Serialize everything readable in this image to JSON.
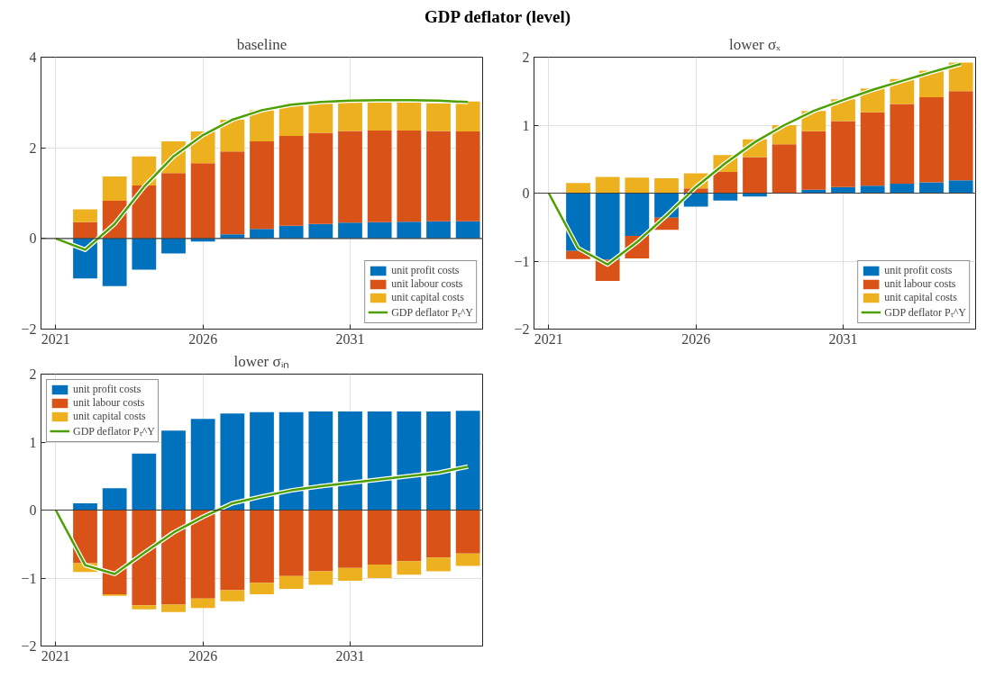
{
  "chart_data": [
    {
      "type": "bar",
      "title": "GDP deflator (level)",
      "subtitle": "baseline",
      "stacked": true,
      "x": [
        2021,
        2022,
        2023,
        2024,
        2025,
        2026,
        2027,
        2028,
        2029,
        2030,
        2031,
        2032,
        2033,
        2034,
        2035
      ],
      "xlim": [
        2020.5,
        2035.5
      ],
      "xticks": [
        2021,
        2026,
        2031
      ],
      "ylim": [
        -2,
        4
      ],
      "yticks": [
        -2,
        0,
        2,
        4
      ],
      "grid": true,
      "legend": "bottom right",
      "marker": "none",
      "line_style": "solid",
      "ref_lines": [
        {
          "axis": "y",
          "value": 0,
          "color": "#404040"
        }
      ],
      "series": [
        {
          "name": "unit profit costs",
          "color": "#0072bd",
          "values": [
            0,
            -0.88,
            -1.05,
            -0.69,
            -0.33,
            -0.07,
            0.09,
            0.21,
            0.28,
            0.32,
            0.35,
            0.36,
            0.37,
            0.38,
            0.38
          ]
        },
        {
          "name": "unit labour costs",
          "color": "#d95319",
          "values": [
            0,
            0.36,
            0.83,
            1.17,
            1.44,
            1.66,
            1.83,
            1.93,
            1.98,
            2.01,
            2.02,
            2.02,
            2.01,
            1.99,
            1.98
          ]
        },
        {
          "name": "unit capital costs",
          "color": "#edb120",
          "values": [
            0,
            0.28,
            0.54,
            0.64,
            0.7,
            0.7,
            0.7,
            0.69,
            0.68,
            0.66,
            0.63,
            0.62,
            0.62,
            0.61,
            0.66
          ]
        },
        {
          "name": "GDP deflator Pₜ^Y",
          "type": "line",
          "color": "#4da000",
          "values": [
            0,
            -0.25,
            0.32,
            1.14,
            1.81,
            2.28,
            2.62,
            2.83,
            2.95,
            3.01,
            3.04,
            3.05,
            3.05,
            3.04,
            3.01
          ]
        }
      ]
    },
    {
      "type": "bar",
      "title": "lower σₓ",
      "stacked": true,
      "x": [
        2021,
        2022,
        2023,
        2024,
        2025,
        2026,
        2027,
        2028,
        2029,
        2030,
        2031,
        2032,
        2033,
        2034,
        2035
      ],
      "xlim": [
        2020.5,
        2035.5
      ],
      "xticks": [
        2021,
        2026,
        2031
      ],
      "ylim": [
        -2,
        2
      ],
      "yticks": [
        -2,
        -1,
        0,
        1,
        2
      ],
      "grid": true,
      "legend": "bottom right",
      "marker": "none",
      "line_style": "solid",
      "ref_lines": [
        {
          "axis": "y",
          "value": 0,
          "color": "#404040"
        }
      ],
      "series": [
        {
          "name": "unit profit costs",
          "color": "#0072bd",
          "values": [
            0,
            -0.85,
            -0.98,
            -0.63,
            -0.36,
            -0.2,
            -0.11,
            -0.05,
            0.0,
            0.05,
            0.09,
            0.11,
            0.14,
            0.16,
            0.19
          ]
        },
        {
          "name": "unit labour costs",
          "color": "#d95319",
          "values": [
            0,
            -0.12,
            -0.31,
            -0.33,
            -0.18,
            0.07,
            0.31,
            0.53,
            0.72,
            0.86,
            0.97,
            1.08,
            1.17,
            1.25,
            1.31
          ]
        },
        {
          "name": "unit capital costs",
          "color": "#edb120",
          "values": [
            0,
            0.15,
            0.24,
            0.23,
            0.22,
            0.22,
            0.25,
            0.26,
            0.28,
            0.3,
            0.32,
            0.35,
            0.37,
            0.39,
            0.42
          ]
        },
        {
          "name": "GDP deflator Pₜ^Y",
          "type": "line",
          "color": "#4da000",
          "values": [
            0,
            -0.81,
            -1.05,
            -0.72,
            -0.33,
            0.09,
            0.44,
            0.75,
            1.0,
            1.21,
            1.37,
            1.52,
            1.65,
            1.78,
            1.9
          ]
        }
      ]
    },
    {
      "type": "bar",
      "title": "lower σᵢₙ",
      "stacked": true,
      "x": [
        2021,
        2022,
        2023,
        2024,
        2025,
        2026,
        2027,
        2028,
        2029,
        2030,
        2031,
        2032,
        2033,
        2034,
        2035
      ],
      "xlim": [
        2020.5,
        2035.5
      ],
      "xticks": [
        2021,
        2026,
        2031
      ],
      "ylim": [
        -2,
        2
      ],
      "yticks": [
        -2,
        -1,
        0,
        1,
        2
      ],
      "grid": true,
      "legend": "top left",
      "marker": "none",
      "line_style": "solid",
      "ref_lines": [
        {
          "axis": "y",
          "value": 0,
          "color": "#404040"
        }
      ],
      "series": [
        {
          "name": "unit profit costs",
          "color": "#0072bd",
          "values": [
            0,
            0.1,
            0.32,
            0.83,
            1.17,
            1.34,
            1.42,
            1.44,
            1.44,
            1.45,
            1.45,
            1.45,
            1.45,
            1.45,
            1.46
          ]
        },
        {
          "name": "unit labour costs",
          "color": "#d95319",
          "values": [
            0,
            -0.78,
            -1.24,
            -1.4,
            -1.39,
            -1.3,
            -1.18,
            -1.07,
            -0.97,
            -0.9,
            -0.85,
            -0.8,
            -0.75,
            -0.7,
            -0.64
          ]
        },
        {
          "name": "unit capital costs",
          "color": "#edb120",
          "values": [
            0,
            -0.13,
            -0.02,
            -0.06,
            -0.11,
            -0.14,
            -0.16,
            -0.17,
            -0.19,
            -0.2,
            -0.19,
            -0.2,
            -0.2,
            -0.2,
            -0.18
          ]
        },
        {
          "name": "GDP deflator Pₜ^Y",
          "type": "line",
          "color": "#4da000",
          "values": [
            0,
            -0.81,
            -0.94,
            -0.63,
            -0.33,
            -0.1,
            0.1,
            0.2,
            0.29,
            0.35,
            0.4,
            0.45,
            0.5,
            0.55,
            0.64
          ]
        }
      ]
    }
  ]
}
